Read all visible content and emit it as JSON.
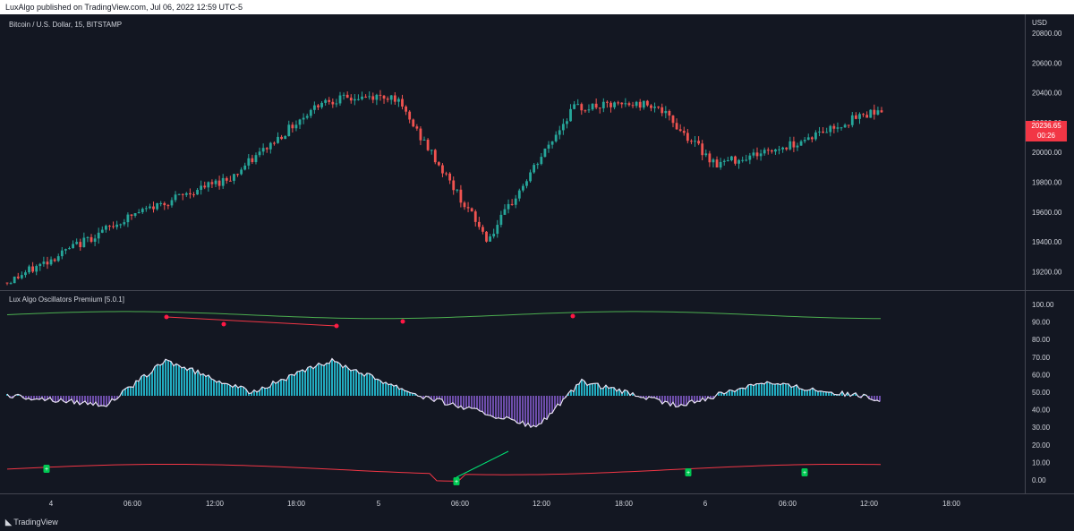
{
  "header": {
    "published_text": "LuxAlgo published on TradingView.com, Jul 06, 2022 12:59 UTC-5"
  },
  "price_pane": {
    "title": "Bitcoin / U.S. Dollar, 15, BITSTAMP",
    "currency": "USD",
    "y_ticks": [
      "20800.00",
      "20600.00",
      "20400.00",
      "20200.00",
      "20000.00",
      "19800.00",
      "19600.00",
      "19400.00",
      "19200.00"
    ],
    "last_price": "20236.65",
    "countdown": "00:26",
    "colors": {
      "up": "#26a69a",
      "down": "#ef5350"
    }
  },
  "oscillator_pane": {
    "title": "Lux Algo Oscillators Premium [5.0.1]",
    "y_ticks": [
      "100.00",
      "90.00",
      "80.00",
      "70.00",
      "60.00",
      "50.00",
      "40.00",
      "30.00",
      "20.00",
      "10.00",
      "0.00"
    ],
    "signal_glyph": "+",
    "colors": {
      "bull": "#26c6da",
      "bear": "#7e57c2",
      "upper": "#4caf50",
      "lower": "#f23645"
    }
  },
  "time_axis": {
    "labels": [
      "4",
      "06:00",
      "12:00",
      "18:00",
      "5",
      "06:00",
      "12:00",
      "18:00",
      "6",
      "06:00",
      "12:00",
      "18:00"
    ]
  },
  "footer": {
    "brand": "TradingView"
  },
  "chart_data": [
    {
      "type": "candlestick",
      "title": "Bitcoin / U.S. Dollar, 15, BITSTAMP",
      "x": [
        "4",
        "06:00",
        "12:00",
        "18:00",
        "5",
        "06:00",
        "12:00",
        "18:00",
        "6",
        "06:00",
        "12:00"
      ],
      "y": [
        19100,
        19550,
        19800,
        20300,
        20330,
        19380,
        20250,
        20280,
        19880,
        20000,
        20240
      ],
      "ylim": [
        19050,
        20820
      ]
    },
    {
      "type": "line",
      "title": "Lux Algo Oscillators Premium [5.0.1]",
      "x": [
        "4",
        "06:00",
        "12:00",
        "18:00",
        "5",
        "06:00",
        "12:00",
        "18:00",
        "6",
        "06:00",
        "12:00"
      ],
      "y": [
        50,
        45,
        70,
        52,
        70,
        50,
        32,
        58,
        44,
        58,
        48
      ],
      "ylim": [
        -5,
        105
      ]
    }
  ]
}
